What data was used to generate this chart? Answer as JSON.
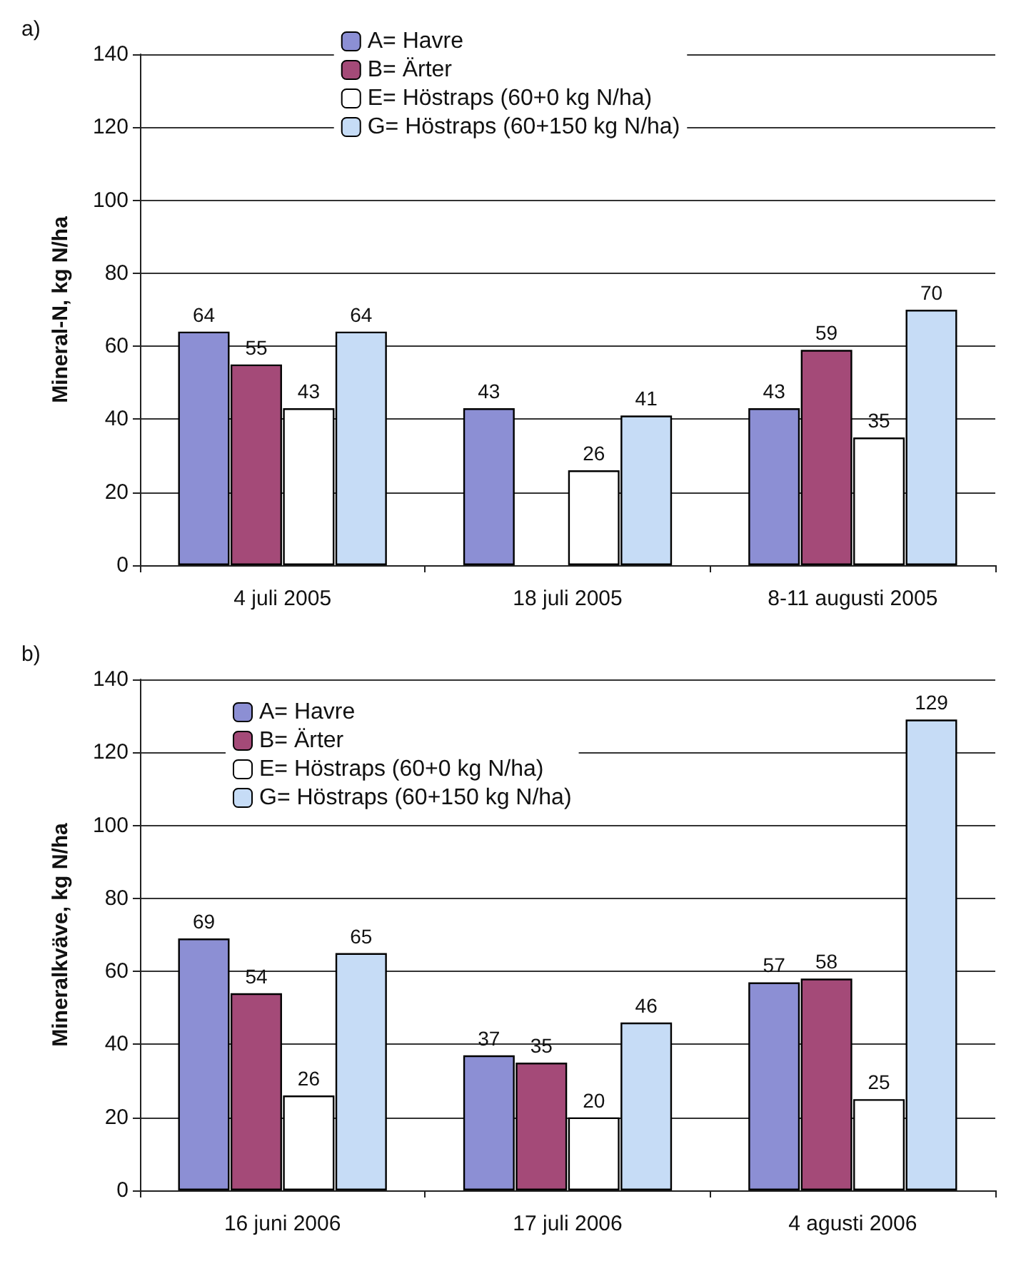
{
  "chart_data": [
    {
      "type": "bar",
      "title": "a)",
      "ylabel": "Mineral-N, kg N/ha",
      "categories": [
        "4 juli 2005",
        "18 juli 2005",
        "8-11 augusti 2005"
      ],
      "series": [
        {
          "name": "A= Havre",
          "color": "#8c8fd4",
          "values": [
            64,
            43,
            43
          ]
        },
        {
          "name": "B= Ärter",
          "color": "#a44a78",
          "values": [
            55,
            null,
            59
          ]
        },
        {
          "name": "E= Höstraps (60+0 kg N/ha)",
          "color": "#ffffff",
          "values": [
            43,
            26,
            35
          ]
        },
        {
          "name": "G= Höstraps (60+150 kg N/ha)",
          "color": "#c6dcf6",
          "values": [
            64,
            41,
            70
          ]
        }
      ],
      "ylim": [
        0,
        140
      ],
      "yticks": [
        0,
        20,
        40,
        60,
        80,
        100,
        120,
        140
      ],
      "grid": "y",
      "legend": "top",
      "data_labels": true
    },
    {
      "type": "bar",
      "title": "b)",
      "ylabel": "Mineralkväve, kg N/ha",
      "categories": [
        "16 juni 2006",
        "17 juli 2006",
        "4 agusti 2006"
      ],
      "series": [
        {
          "name": "A= Havre",
          "color": "#8c8fd4",
          "values": [
            69,
            37,
            57
          ]
        },
        {
          "name": "B= Ärter",
          "color": "#a44a78",
          "values": [
            54,
            35,
            58
          ]
        },
        {
          "name": "E= Höstraps (60+0 kg N/ha)",
          "color": "#ffffff",
          "values": [
            26,
            20,
            25
          ]
        },
        {
          "name": "G= Höstraps (60+150 kg N/ha)",
          "color": "#c6dcf6",
          "values": [
            65,
            46,
            129
          ]
        }
      ],
      "ylim": [
        0,
        140
      ],
      "yticks": [
        0,
        20,
        40,
        60,
        80,
        100,
        120,
        140
      ],
      "grid": "y",
      "legend": "top left",
      "data_labels": true
    }
  ]
}
